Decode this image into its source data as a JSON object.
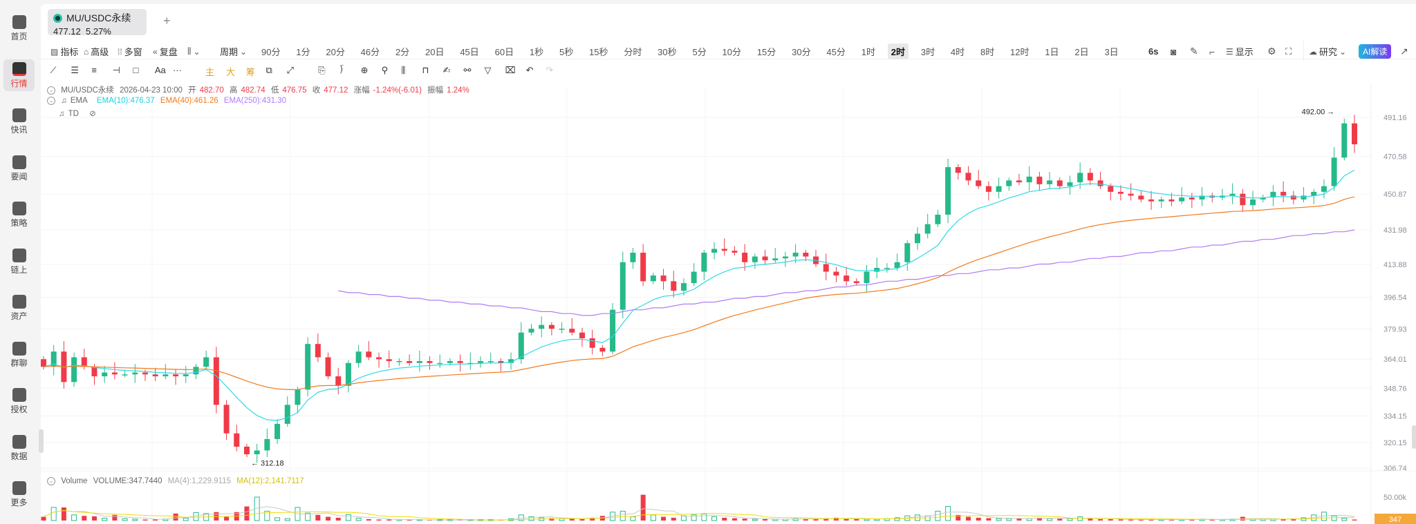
{
  "sidebar": {
    "items": [
      {
        "label": "首页",
        "icon": "home-icon"
      },
      {
        "label": "行情",
        "icon": "market-chart-icon",
        "active": true
      },
      {
        "label": "快讯",
        "icon": "news-flash-icon"
      },
      {
        "label": "要闻",
        "icon": "document-icon"
      },
      {
        "label": "策略",
        "icon": "robot-icon"
      },
      {
        "label": "链上",
        "icon": "onchain-icon"
      },
      {
        "label": "资产",
        "icon": "wallet-icon"
      },
      {
        "label": "群聊",
        "icon": "chat-icon"
      },
      {
        "label": "授权",
        "icon": "key-icon"
      },
      {
        "label": "数据",
        "icon": "data-monitor-icon"
      },
      {
        "label": "更多",
        "icon": "grid-more-icon"
      }
    ]
  },
  "tab": {
    "symbol": "MU/USDC永续",
    "price": "477.12",
    "change": "5.27%",
    "add": "+"
  },
  "toolbar": {
    "indicator": "指标",
    "advanced": "高级",
    "multi_window": "多窗",
    "replay": "复盘",
    "period": "周期",
    "periods": [
      "90分",
      "1分",
      "20分",
      "46分",
      "2分",
      "20日",
      "45日",
      "60日",
      "1秒",
      "5秒",
      "15秒",
      "分时",
      "30秒",
      "5分",
      "10分",
      "15分",
      "30分",
      "45分",
      "1时",
      "2时",
      "3时",
      "4时",
      "8时",
      "12时",
      "1日",
      "2日",
      "3日"
    ],
    "active_period": "2时",
    "refresh": "6s",
    "display": "显示",
    "research": "研究",
    "ai": "AI解读"
  },
  "draw_tools": [
    "trend-line",
    "parallel-channel",
    "horizontal-lines",
    "horizontal-ray",
    "rectangle",
    "text",
    "more",
    "main",
    "large",
    "chips",
    "tool-a",
    "tool-b",
    "copy",
    "ruler",
    "zoom",
    "magnet",
    "measure",
    "lock",
    "note",
    "link",
    "filter",
    "delete",
    "undo",
    "redo"
  ],
  "draw_labels": {
    "text": "Aa",
    "more": "···",
    "main": "主",
    "large": "大",
    "chips": "筹"
  },
  "legend": {
    "symbol": "MU/USDC永续",
    "time": "2026-04-23 10:00",
    "open_l": "开",
    "open": "482.70",
    "high_l": "高",
    "high": "482.74",
    "low_l": "低",
    "low": "476.75",
    "close_l": "收",
    "close": "477.12",
    "chg_l": "涨幅",
    "chg": "-1.24%(-6.01)",
    "amp_l": "振幅",
    "amp": "1.24%",
    "ema_name": "EMA",
    "ema10": "EMA(10):476.37",
    "ema40": "EMA(40):461.26",
    "ema250": "EMA(250):431.30",
    "td": "TD",
    "vol_name": "Volume",
    "vol": "VOLUME:347.7440",
    "ma4": "MA(4):1,229.9115",
    "ma12": "MA(12):2,141.7117"
  },
  "colors": {
    "up": "#26b98a",
    "down": "#f03a48",
    "ema10": "#2fd8e6",
    "ema40": "#f27a1a",
    "ema250": "#b07cf5",
    "ma4": "#c8c8c8",
    "ma12": "#f0dc00",
    "badge": "#f5a83a"
  },
  "chart_data": {
    "type": "candlestick",
    "y_ticks": [
      "491.16",
      "470.58",
      "450.87",
      "431.98",
      "413.88",
      "396.54",
      "379.93",
      "364.01",
      "348.76",
      "334.15",
      "320.15",
      "306.74"
    ],
    "volume_tick": "50.00k",
    "volume_badge": "347",
    "max_label": "492.00",
    "min_label": "312.18",
    "close": [
      360,
      368,
      352,
      365,
      360,
      355,
      357,
      356,
      356,
      357,
      356,
      355,
      356,
      355,
      356,
      360,
      365,
      340,
      325,
      318,
      314,
      316,
      322,
      330,
      340,
      348,
      372,
      365,
      355,
      350,
      362,
      368,
      365,
      364,
      363,
      363,
      362,
      363,
      362,
      362,
      363,
      362,
      362,
      363,
      363,
      362,
      364,
      378,
      380,
      382,
      380,
      380,
      378,
      375,
      370,
      368,
      390,
      415,
      420,
      405,
      408,
      405,
      400,
      404,
      410,
      420,
      422,
      421,
      420,
      415,
      418,
      416,
      417,
      418,
      420,
      418,
      414,
      410,
      408,
      405,
      404,
      410,
      412,
      412,
      415,
      425,
      430,
      435,
      440,
      465,
      462,
      458,
      455,
      452,
      455,
      458,
      457,
      460,
      456,
      458,
      455,
      457,
      462,
      458,
      455,
      452,
      451,
      450,
      448,
      447,
      448,
      447,
      449,
      448,
      450,
      449,
      450,
      451,
      445,
      448,
      449,
      452,
      450,
      448,
      450,
      452,
      455,
      470,
      488,
      477
    ],
    "ema250": [
      null,
      null,
      null,
      null,
      null,
      null,
      null,
      null,
      null,
      null,
      null,
      null,
      null,
      null,
      null,
      null,
      null,
      null,
      null,
      null,
      null,
      null,
      null,
      null,
      null,
      null,
      null,
      null,
      null,
      400,
      399,
      399,
      398,
      398,
      397,
      397,
      396,
      396,
      395,
      395,
      394,
      394,
      393,
      393,
      392,
      392,
      391,
      391,
      390,
      389,
      389,
      388,
      388,
      387,
      387,
      388,
      388,
      389,
      390,
      390,
      391,
      391,
      392,
      393,
      393,
      394,
      394,
      395,
      396,
      396,
      397,
      397,
      398,
      399,
      399,
      400,
      400,
      401,
      402,
      402,
      403,
      403,
      404,
      405,
      405,
      406,
      406,
      407,
      408,
      408,
      409,
      409,
      410,
      411,
      411,
      412,
      412,
      413,
      414,
      414,
      415,
      415,
      416,
      417,
      417,
      418,
      418,
      419,
      420,
      420,
      421,
      421,
      422,
      423,
      423,
      424,
      424,
      425,
      426,
      426,
      427,
      427,
      428,
      429,
      429,
      430,
      430,
      431,
      431,
      432
    ],
    "volume": [
      8000,
      28000,
      28000,
      12000,
      10000,
      9000,
      5000,
      12000,
      4000,
      3000,
      2000,
      2000,
      3000,
      15000,
      5000,
      17000,
      15000,
      18000,
      8000,
      18000,
      30000,
      50000,
      20000,
      6000,
      4000,
      28000,
      16000,
      12000,
      8000,
      6000,
      13000,
      5000,
      3000,
      2000,
      2000,
      2000,
      2000,
      1000,
      1000,
      1000,
      1000,
      1000,
      1000,
      1000,
      1000,
      2000,
      4000,
      12000,
      8000,
      6000,
      5000,
      4000,
      4000,
      3000,
      6000,
      10000,
      18000,
      20000,
      8000,
      55000,
      12000,
      8000,
      6000,
      10000,
      12000,
      14000,
      8000,
      6000,
      5000,
      4000,
      3000,
      3000,
      3000,
      3000,
      4000,
      3000,
      3000,
      5000,
      6000,
      4000,
      4000,
      3000,
      3000,
      4000,
      6000,
      10000,
      12000,
      10000,
      20000,
      30000,
      12000,
      8000,
      6000,
      5000,
      4000,
      4000,
      5000,
      4000,
      6000,
      4000,
      4000,
      4000,
      8000,
      4000,
      3000,
      3000,
      2000,
      2000,
      2000,
      2000,
      2000,
      2000,
      2000,
      3000,
      3000,
      2000,
      2000,
      3000,
      8000,
      3000,
      3000,
      3000,
      3000,
      4000,
      6000,
      12000,
      18000,
      10000,
      5000,
      348
    ]
  }
}
